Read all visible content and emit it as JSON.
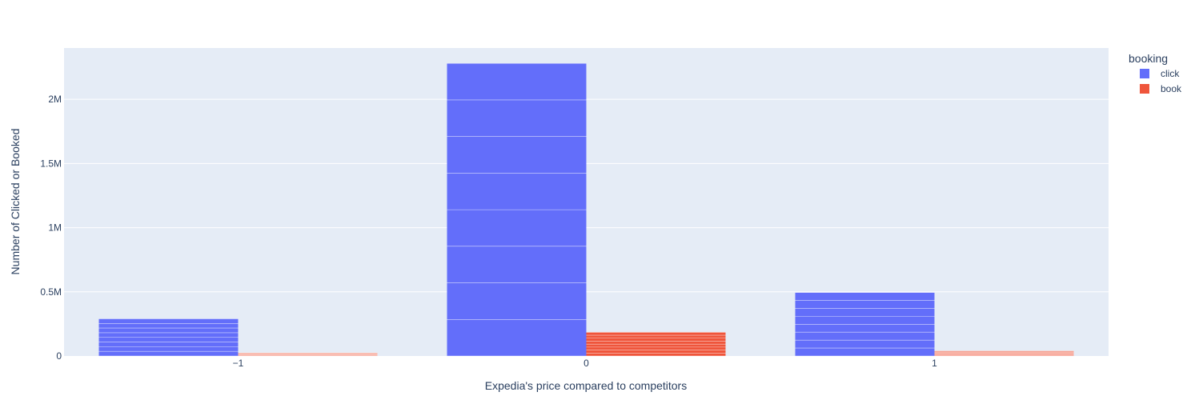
{
  "chart_data": {
    "type": "bar",
    "barmode": "group",
    "categories": [
      "−1",
      "0",
      "1"
    ],
    "x": [
      -1,
      0,
      1
    ],
    "series": [
      {
        "name": "click",
        "color": "#636efa",
        "values": [
          290000,
          2280000,
          495000
        ],
        "segments": [
          8,
          8,
          8
        ]
      },
      {
        "name": "book",
        "color": "#ef553b",
        "values": [
          25000,
          185000,
          40000
        ],
        "segments": [
          8,
          8,
          8
        ]
      }
    ],
    "xlabel": "Expedia's price compared to competitors",
    "ylabel": "Number of Clicked or Booked",
    "ylim": [
      0,
      2400000
    ],
    "y_ticks": [
      {
        "value": 0,
        "label": "0"
      },
      {
        "value": 500000,
        "label": "0.5M"
      },
      {
        "value": 1000000,
        "label": "1M"
      },
      {
        "value": 1500000,
        "label": "1.5M"
      },
      {
        "value": 2000000,
        "label": "2M"
      }
    ],
    "legend": {
      "title": "booking",
      "placement": "right"
    },
    "grid": true,
    "plot_bg": "#e5ecf6"
  }
}
